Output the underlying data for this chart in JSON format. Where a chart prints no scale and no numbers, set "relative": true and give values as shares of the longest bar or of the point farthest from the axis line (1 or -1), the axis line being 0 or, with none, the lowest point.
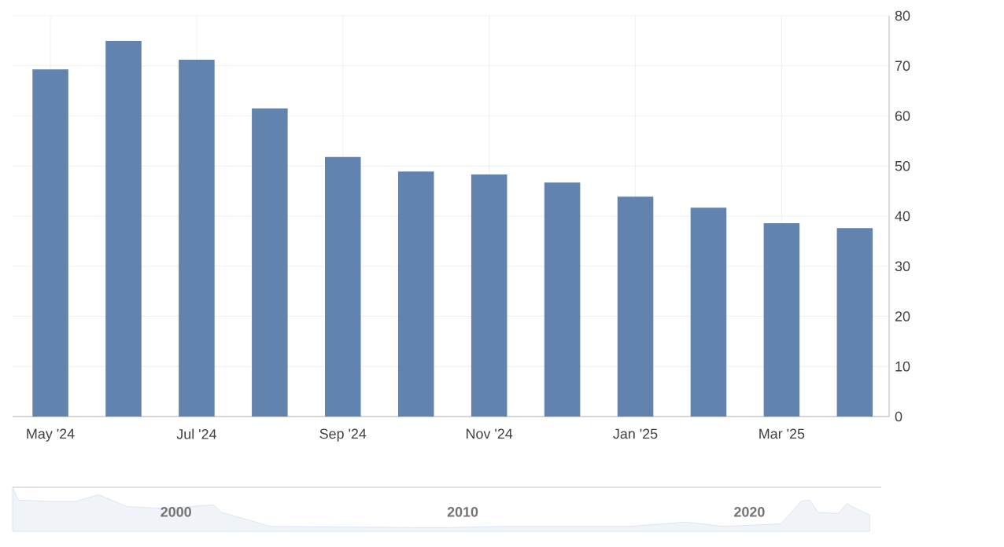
{
  "chart_data": [
    {
      "type": "bar",
      "categories": [
        "May '24",
        null,
        "Jul '24",
        null,
        "Sep '24",
        null,
        "Nov '24",
        null,
        "Jan '25",
        null,
        "Mar '25",
        null
      ],
      "values": [
        69.3,
        75.0,
        71.2,
        61.5,
        51.8,
        48.9,
        48.3,
        46.7,
        43.9,
        41.7,
        38.6,
        37.6
      ],
      "color": "#6183ad",
      "ylim": [
        0,
        80
      ],
      "yticks": [
        0,
        10,
        20,
        30,
        40,
        50,
        60,
        70,
        80
      ],
      "grid": true
    },
    {
      "type": "area",
      "relative": true,
      "color": "#d3e0ef",
      "x": [
        1994.3,
        1994.5,
        1995.6,
        1996.5,
        1997.3,
        1998.3,
        1999.6,
        2001.3,
        2001.6,
        2003.3,
        2009.2,
        2011.4,
        2015.8,
        2017.8,
        2019.1,
        2021.1,
        2021.8,
        2022.1,
        2022.4,
        2023.1,
        2023.4,
        2023.7,
        2024.2
      ],
      "values": [
        1,
        0.71,
        0.68,
        0.68,
        0.83,
        0.56,
        0.52,
        0.6,
        0.43,
        0.11,
        0.08,
        0.11,
        0.11,
        0.21,
        0.11,
        0.17,
        0.68,
        0.71,
        0.43,
        0.4,
        0.63,
        0.52,
        0.37
      ],
      "xlim": [
        1994.3,
        2024.6
      ],
      "xticks": [
        2000,
        2010,
        2020
      ],
      "tick_labels": "x"
    }
  ]
}
